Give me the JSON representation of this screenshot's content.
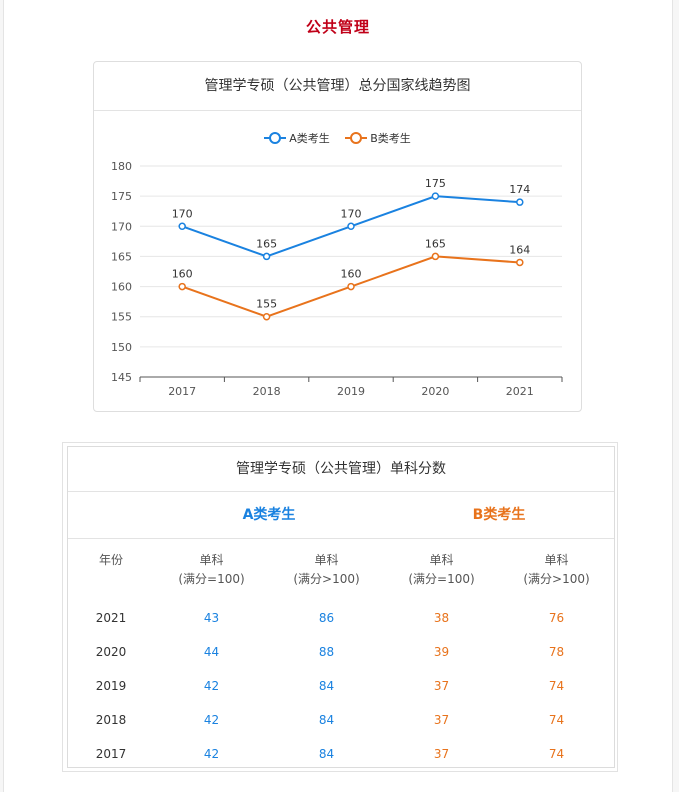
{
  "page_title": "公共管理",
  "chart_data": {
    "type": "line",
    "title": "管理学专硕（公共管理）总分国家线趋势图",
    "categories": [
      "2017",
      "2018",
      "2019",
      "2020",
      "2021"
    ],
    "series": [
      {
        "name": "A类考生",
        "color": "#1a82e0",
        "values": [
          170,
          165,
          170,
          175,
          174
        ]
      },
      {
        "name": "B类考生",
        "color": "#e8731c",
        "values": [
          160,
          155,
          160,
          165,
          164
        ]
      }
    ],
    "ylim": [
      145,
      180
    ],
    "yticks": [
      145,
      150,
      155,
      160,
      165,
      170,
      175,
      180
    ],
    "grid": true,
    "legend": "top-center"
  },
  "table": {
    "title": "管理学专硕（公共管理）单科分数",
    "group_a": "A类考生",
    "group_b": "B类考生",
    "colors": {
      "a": "#1a82e0",
      "b": "#e8731c"
    },
    "headers": {
      "year": "年份",
      "col1": {
        "line1": "单科",
        "line2": "(满分=100)"
      },
      "col2": {
        "line1": "单科",
        "line2": "(满分>100)"
      },
      "col3": {
        "line1": "单科",
        "line2": "(满分=100)"
      },
      "col4": {
        "line1": "单科",
        "line2": "(满分>100)"
      }
    },
    "rows": [
      {
        "year": "2021",
        "a1": "43",
        "a2": "86",
        "b1": "38",
        "b2": "76"
      },
      {
        "year": "2020",
        "a1": "44",
        "a2": "88",
        "b1": "39",
        "b2": "78"
      },
      {
        "year": "2019",
        "a1": "42",
        "a2": "84",
        "b1": "37",
        "b2": "74"
      },
      {
        "year": "2018",
        "a1": "42",
        "a2": "84",
        "b1": "37",
        "b2": "74"
      },
      {
        "year": "2017",
        "a1": "42",
        "a2": "84",
        "b1": "37",
        "b2": "74"
      }
    ]
  }
}
